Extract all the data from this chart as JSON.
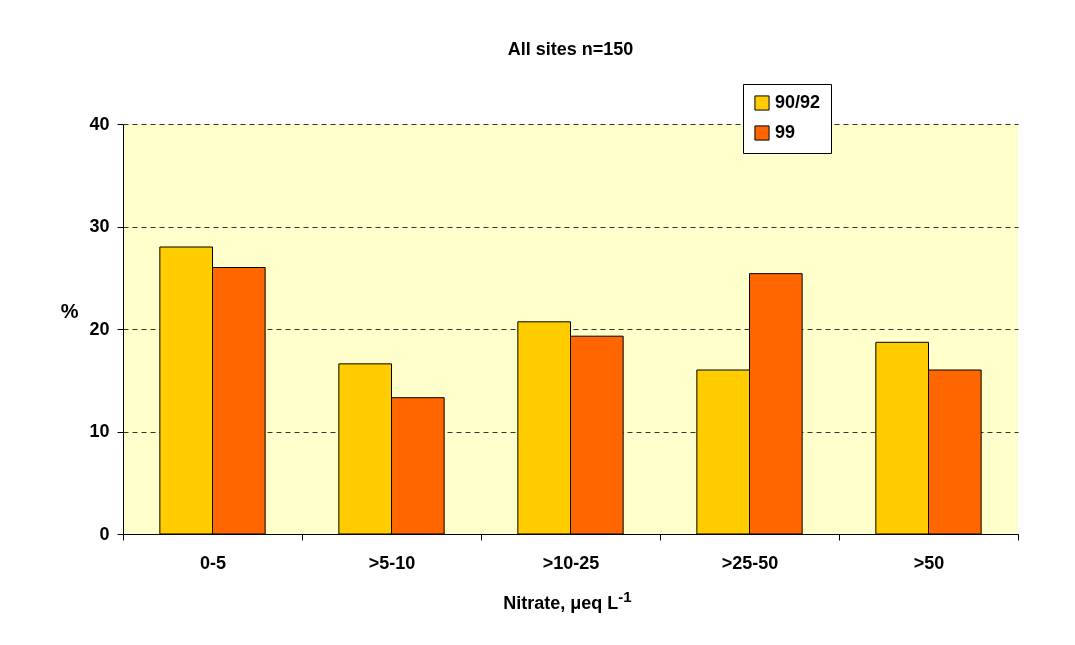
{
  "chart_data": {
    "type": "bar",
    "title": "All sites  n=150",
    "xlabel": "Nitrate, μeq L$^{-1}$",
    "ylabel": "%",
    "categories": [
      "0-5",
      ">5-10",
      ">10-25",
      ">25-50",
      ">50"
    ],
    "series": [
      {
        "name": "90/92",
        "color": "#ffcc00",
        "values": [
          28,
          16.6,
          20.7,
          16,
          18.7
        ]
      },
      {
        "name": "99",
        "color": "#ff6600",
        "values": [
          26,
          13.3,
          19.3,
          25.4,
          16
        ]
      }
    ],
    "ylim": [
      0,
      40
    ],
    "yticks": [
      0,
      10,
      20,
      30,
      40
    ],
    "grid": "y",
    "legend": "top right"
  }
}
